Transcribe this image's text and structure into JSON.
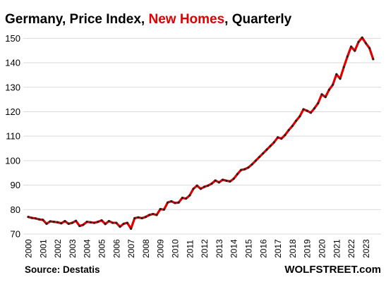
{
  "chart_data": {
    "type": "line",
    "title_parts": [
      "Germany, Price Index, ",
      "New Homes",
      ", Quarterly"
    ],
    "title_highlight_color": "#e00000",
    "line_color": "#e00000",
    "marker_color": "#222222",
    "source": "Source: Destatis",
    "brand": "WOLFSTREET.com",
    "ylim": [
      70,
      155
    ],
    "yticks": [
      70,
      80,
      90,
      100,
      110,
      120,
      130,
      140,
      150
    ],
    "xticks": [
      "2000",
      "2001",
      "2002",
      "2003",
      "2004",
      "2005",
      "2006",
      "2007",
      "2008",
      "2009",
      "2010",
      "2011",
      "2012",
      "2013",
      "2014",
      "2015",
      "2016",
      "2017",
      "2018",
      "2019",
      "2020",
      "2021",
      "2022",
      "2023"
    ],
    "grid": "horizontal",
    "series": [
      {
        "start": "2000-Q1",
        "values": [
          77.0,
          76.6,
          76.4,
          76.0,
          75.8,
          74.2,
          75.2,
          75.0,
          74.8,
          74.4,
          75.3,
          74.2,
          74.6,
          75.4,
          73.3,
          73.8,
          75.0,
          74.8,
          74.6,
          75.0,
          75.6,
          74.1,
          75.3,
          74.6,
          74.6,
          73.0,
          74.2,
          74.6,
          72.2,
          76.5,
          76.8,
          76.5,
          77.0,
          77.8,
          78.2,
          77.8,
          80.2,
          80.0,
          82.9,
          83.4,
          82.7,
          82.9,
          84.8,
          84.5,
          85.8,
          88.5,
          89.8,
          88.5,
          89.3,
          89.8,
          90.6,
          91.9,
          91.1,
          92.2,
          91.8,
          91.5,
          92.6,
          94.5,
          96.2,
          96.5,
          97.2,
          98.5,
          100.0,
          101.5,
          103.0,
          104.5,
          106.0,
          107.5,
          109.5,
          109.0,
          110.5,
          112.5,
          114.2,
          116.3,
          118.1,
          121.0,
          120.4,
          119.6,
          121.4,
          123.5,
          127.1,
          126.0,
          129.0,
          131.0,
          135.3,
          133.5,
          138.2,
          142.6,
          146.6,
          144.9,
          148.5,
          150.3,
          148.0,
          146.0,
          141.5
        ]
      }
    ]
  }
}
